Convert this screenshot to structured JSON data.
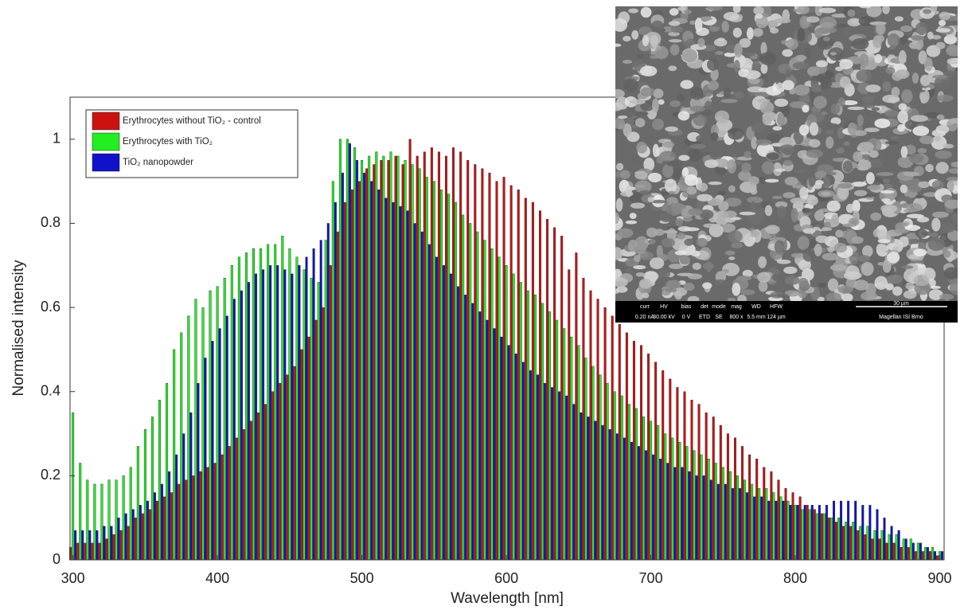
{
  "chart_data": {
    "type": "bar",
    "x_label": "Wavelength [nm]",
    "y_label": "Normalised intensity",
    "xlim": [
      298,
      903
    ],
    "ylim": [
      0,
      1.1
    ],
    "xticks": [
      300,
      400,
      500,
      600,
      700,
      800,
      900
    ],
    "yticks": [
      0,
      0.2,
      0.4,
      0.6,
      0.8,
      1
    ],
    "x": [
      300,
      305,
      310,
      315,
      320,
      325,
      330,
      335,
      340,
      345,
      350,
      355,
      360,
      365,
      370,
      375,
      380,
      385,
      390,
      395,
      400,
      405,
      410,
      415,
      420,
      425,
      430,
      435,
      440,
      445,
      450,
      455,
      460,
      465,
      470,
      475,
      480,
      485,
      490,
      495,
      500,
      505,
      510,
      515,
      520,
      525,
      530,
      535,
      540,
      545,
      550,
      555,
      560,
      565,
      570,
      575,
      580,
      585,
      590,
      595,
      600,
      605,
      610,
      615,
      620,
      625,
      630,
      635,
      640,
      645,
      650,
      655,
      660,
      665,
      670,
      675,
      680,
      685,
      690,
      695,
      700,
      705,
      710,
      715,
      720,
      725,
      730,
      735,
      740,
      745,
      750,
      755,
      760,
      765,
      770,
      775,
      780,
      785,
      790,
      795,
      800,
      805,
      810,
      815,
      820,
      825,
      830,
      835,
      840,
      845,
      850,
      855,
      860,
      865,
      870,
      875,
      880,
      885,
      890,
      895,
      900
    ],
    "series": [
      {
        "name": "Erythrocytes without TiO₂ - control",
        "color": "#cc1111",
        "values": [
          0.03,
          0.04,
          0.04,
          0.04,
          0.04,
          0.05,
          0.06,
          0.07,
          0.08,
          0.1,
          0.11,
          0.12,
          0.14,
          0.15,
          0.16,
          0.18,
          0.19,
          0.2,
          0.21,
          0.22,
          0.23,
          0.25,
          0.27,
          0.29,
          0.31,
          0.33,
          0.35,
          0.37,
          0.4,
          0.42,
          0.44,
          0.46,
          0.5,
          0.53,
          0.57,
          0.6,
          0.7,
          0.78,
          0.85,
          0.88,
          0.9,
          0.93,
          0.94,
          0.95,
          0.95,
          0.96,
          0.94,
          1.0,
          0.96,
          0.97,
          0.98,
          0.97,
          0.96,
          0.98,
          0.97,
          0.95,
          0.94,
          0.93,
          0.92,
          0.9,
          0.91,
          0.89,
          0.88,
          0.86,
          0.85,
          0.83,
          0.81,
          0.79,
          0.77,
          0.69,
          0.73,
          0.67,
          0.64,
          0.62,
          0.6,
          0.58,
          0.56,
          0.54,
          0.52,
          0.51,
          0.49,
          0.47,
          0.45,
          0.43,
          0.41,
          0.4,
          0.38,
          0.37,
          0.35,
          0.34,
          0.32,
          0.3,
          0.29,
          0.27,
          0.25,
          0.24,
          0.22,
          0.21,
          0.19,
          0.17,
          0.16,
          0.15,
          0.13,
          0.12,
          0.11,
          0.1,
          0.09,
          0.08,
          0.08,
          0.07,
          0.06,
          0.05,
          0.05,
          0.04,
          0.04,
          0.03,
          0.03,
          0.02,
          0.02,
          0.02,
          0.01
        ]
      },
      {
        "name": "Erythrocytes with TiO₂",
        "color": "#22ee22",
        "values": [
          0.35,
          0.23,
          0.19,
          0.18,
          0.18,
          0.19,
          0.19,
          0.2,
          0.22,
          0.27,
          0.31,
          0.34,
          0.38,
          0.42,
          0.5,
          0.54,
          0.58,
          0.62,
          0.6,
          0.64,
          0.65,
          0.67,
          0.7,
          0.72,
          0.73,
          0.74,
          0.74,
          0.75,
          0.75,
          0.77,
          0.74,
          0.72,
          0.69,
          0.67,
          0.66,
          0.76,
          0.9,
          1.0,
          1.0,
          0.98,
          0.95,
          0.96,
          0.97,
          0.96,
          0.97,
          0.96,
          0.95,
          0.94,
          0.93,
          0.91,
          0.9,
          0.88,
          0.87,
          0.85,
          0.82,
          0.8,
          0.78,
          0.76,
          0.74,
          0.72,
          0.7,
          0.68,
          0.66,
          0.64,
          0.63,
          0.61,
          0.59,
          0.57,
          0.55,
          0.53,
          0.51,
          0.48,
          0.46,
          0.44,
          0.42,
          0.4,
          0.39,
          0.37,
          0.36,
          0.34,
          0.33,
          0.32,
          0.3,
          0.29,
          0.28,
          0.27,
          0.26,
          0.25,
          0.24,
          0.23,
          0.22,
          0.21,
          0.2,
          0.19,
          0.18,
          0.17,
          0.17,
          0.16,
          0.15,
          0.14,
          0.13,
          0.12,
          0.12,
          0.11,
          0.11,
          0.1,
          0.1,
          0.09,
          0.09,
          0.08,
          0.08,
          0.07,
          0.07,
          0.06,
          0.06,
          0.05,
          0.05,
          0.04,
          0.03,
          0.03,
          0.02
        ]
      },
      {
        "name": "TiO₂ nanopowder",
        "color": "#1111cc",
        "values": [
          0.07,
          0.07,
          0.07,
          0.07,
          0.08,
          0.08,
          0.1,
          0.11,
          0.12,
          0.13,
          0.14,
          0.16,
          0.18,
          0.21,
          0.25,
          0.3,
          0.35,
          0.42,
          0.48,
          0.52,
          0.55,
          0.58,
          0.62,
          0.64,
          0.66,
          0.68,
          0.69,
          0.7,
          0.7,
          0.69,
          0.68,
          0.7,
          0.72,
          0.74,
          0.76,
          0.8,
          0.85,
          0.92,
          0.99,
          0.95,
          0.92,
          0.9,
          0.88,
          0.86,
          0.85,
          0.84,
          0.83,
          0.8,
          0.78,
          0.75,
          0.72,
          0.7,
          0.68,
          0.65,
          0.63,
          0.61,
          0.59,
          0.57,
          0.55,
          0.53,
          0.51,
          0.49,
          0.47,
          0.45,
          0.44,
          0.42,
          0.41,
          0.4,
          0.39,
          0.37,
          0.35,
          0.34,
          0.33,
          0.32,
          0.31,
          0.3,
          0.29,
          0.28,
          0.27,
          0.26,
          0.25,
          0.24,
          0.23,
          0.22,
          0.22,
          0.21,
          0.2,
          0.2,
          0.19,
          0.18,
          0.18,
          0.17,
          0.17,
          0.16,
          0.15,
          0.15,
          0.14,
          0.14,
          0.14,
          0.13,
          0.13,
          0.13,
          0.13,
          0.13,
          0.13,
          0.14,
          0.14,
          0.14,
          0.14,
          0.13,
          0.13,
          0.12,
          0.1,
          0.08,
          0.07,
          0.05,
          0.04,
          0.04,
          0.03,
          0.02,
          0.02
        ]
      }
    ],
    "legend_position": "upper left",
    "inset": {
      "labels": [
        "curr",
        "HV",
        "bias",
        "det",
        "mode",
        "mag",
        "WD",
        "HFW"
      ],
      "values": [
        "0.20 nA",
        "30.00 kV",
        "0 V",
        "ETD",
        "SE",
        "800 x",
        "5.5 mm",
        "124 µm"
      ],
      "scale_bar": "30 µm",
      "instrument": "Magellan ISI Brno"
    }
  }
}
